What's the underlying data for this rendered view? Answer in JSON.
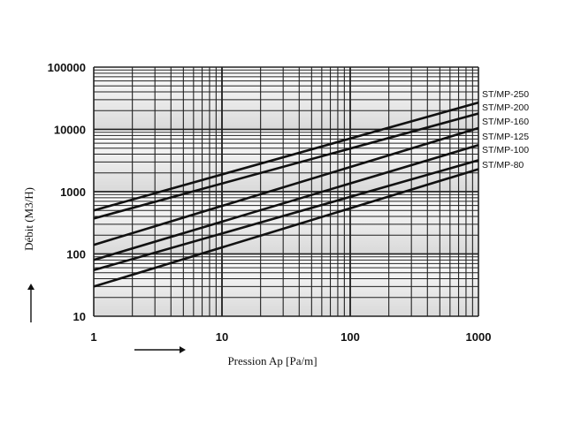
{
  "chart_data": {
    "type": "line",
    "xscale": "log",
    "yscale": "log",
    "xlim": [
      1,
      1000
    ],
    "ylim": [
      10,
      100000
    ],
    "xlabel": "Pression Ap [Pa/m]",
    "ylabel": "Débit (M3/H)",
    "x_ticks": [
      "1",
      "10",
      "100",
      "1000"
    ],
    "y_ticks": [
      "10",
      "100",
      "1000",
      "10000",
      "100000"
    ],
    "grid": true,
    "legend": "right-inline",
    "series": [
      {
        "name": "ST/MP-250",
        "x": [
          1,
          1000
        ],
        "y": [
          500,
          27000
        ]
      },
      {
        "name": "ST/MP-200",
        "x": [
          1,
          1000
        ],
        "y": [
          370,
          18000
        ]
      },
      {
        "name": "ST/MP-160",
        "x": [
          1,
          1000
        ],
        "y": [
          140,
          10500
        ]
      },
      {
        "name": "ST/MP-125",
        "x": [
          1,
          1000
        ],
        "y": [
          80,
          5600
        ]
      },
      {
        "name": "ST/MP-100",
        "x": [
          1,
          1000
        ],
        "y": [
          55,
          3200
        ]
      },
      {
        "name": "ST/MP-80",
        "x": [
          1,
          1000
        ],
        "y": [
          30,
          2300
        ]
      }
    ]
  }
}
